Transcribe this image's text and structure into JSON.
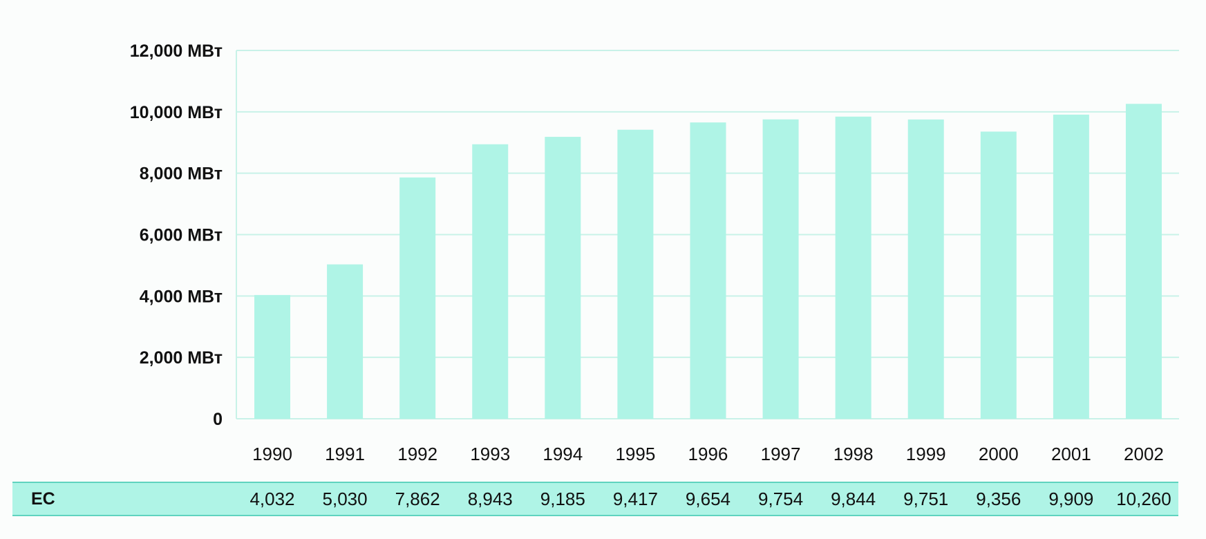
{
  "chart_data": {
    "type": "bar",
    "categories": [
      "1990",
      "1991",
      "1992",
      "1993",
      "1994",
      "1995",
      "1996",
      "1997",
      "1998",
      "1999",
      "2000",
      "2001",
      "2002"
    ],
    "series": [
      {
        "name": "ЕС",
        "values": [
          4032,
          5030,
          7862,
          8943,
          9185,
          9417,
          9654,
          9754,
          9844,
          9751,
          9356,
          9909,
          10260
        ]
      }
    ],
    "y_ticks": [
      "0",
      "2,000 МВт",
      "4,000 МВт",
      "6,000 МВт",
      "8,000 МВт",
      "10,000 МВт",
      "12,000 МВт"
    ],
    "ylim": [
      0,
      12000
    ],
    "grid": true,
    "colors": {
      "bar": "#aff4e6",
      "grid": "#c8f2e8",
      "table_border": "#5fd3bf"
    }
  },
  "table": {
    "row_label": "ЕС",
    "cells": [
      "4,032",
      "5,030",
      "7,862",
      "8,943",
      "9,185",
      "9,417",
      "9,654",
      "9,754",
      "9,844",
      "9,751",
      "9,356",
      "9,909",
      "10,260"
    ]
  }
}
